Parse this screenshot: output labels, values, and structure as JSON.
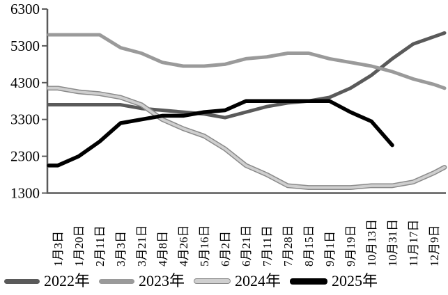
{
  "chart_data": {
    "type": "line",
    "title": "",
    "xlabel": "",
    "ylabel": "",
    "grid": false,
    "legend_position": "bottom",
    "axis_color": "#595959",
    "ylim": [
      1300,
      6300
    ],
    "yticks": [
      1300,
      2300,
      3300,
      4300,
      5300,
      6300
    ],
    "categories": [
      "1月3日",
      "1月20日",
      "2月11日",
      "3月3日",
      "3月21日",
      "4月8日",
      "4月26日",
      "5月16日",
      "6月2日",
      "6月21日",
      "7月11日",
      "7月28日",
      "8月15日",
      "9月1日",
      "9月19日",
      "10月13日",
      "10月31日",
      "11月17日",
      "12月9日"
    ],
    "series": [
      {
        "name": "2022年",
        "color": "#5a5a5a",
        "line_width": 5,
        "values": [
          3700,
          3700,
          3700,
          3700,
          3600,
          3550,
          3500,
          3450,
          3350,
          3500,
          3650,
          3750,
          3800,
          3900,
          4150,
          4500,
          4950,
          5350,
          5550
        ],
        "end_value": 5650
      },
      {
        "name": "2023年",
        "color": "#9a9a9a",
        "line_width": 5,
        "values": [
          5600,
          5600,
          5600,
          5250,
          5100,
          4850,
          4750,
          4750,
          4800,
          4950,
          5000,
          5100,
          5100,
          4950,
          4850,
          4750,
          4600,
          4400,
          4250
        ],
        "end_value": 4150
      },
      {
        "name": "2024年",
        "color": "#cfcfcf",
        "outline_color": "#8a8a8a",
        "line_width": 5,
        "values": [
          4150,
          4050,
          4000,
          3900,
          3700,
          3300,
          3050,
          2850,
          2500,
          2050,
          1800,
          1500,
          1450,
          1450,
          1450,
          1500,
          1500,
          1600,
          1850
        ],
        "end_value": 2000
      },
      {
        "name": "2025年",
        "color": "#000000",
        "line_width": 5.5,
        "values": [
          2050,
          2300,
          2700,
          3200,
          3300,
          3400,
          3400,
          3500,
          3550,
          3800,
          3800,
          3800,
          3800,
          3800,
          3500,
          3250,
          2600,
          null,
          null
        ],
        "end_value": null
      }
    ]
  },
  "legend": {
    "items": [
      {
        "label": "2022年"
      },
      {
        "label": "2023年"
      },
      {
        "label": "2024年"
      },
      {
        "label": "2025年"
      }
    ]
  }
}
